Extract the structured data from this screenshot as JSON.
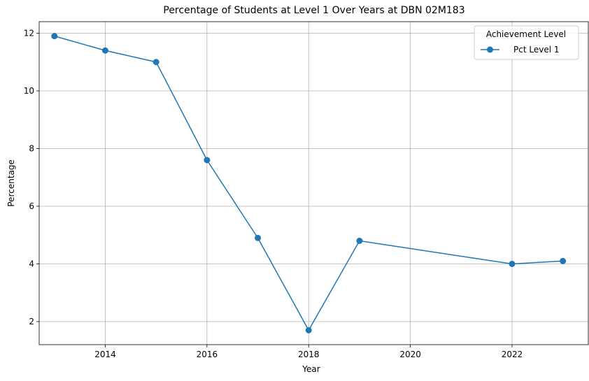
{
  "chart_data": {
    "type": "line",
    "title": "Percentage of Students at Level 1 Over Years at DBN 02M183",
    "xlabel": "Year",
    "ylabel": "Percentage",
    "xlim": [
      2012.7,
      2023.5
    ],
    "ylim": [
      1.2,
      12.4
    ],
    "xticks": [
      2014,
      2016,
      2018,
      2020,
      2022
    ],
    "yticks": [
      2,
      4,
      6,
      8,
      10,
      12
    ],
    "grid": true,
    "legend": {
      "title": "Achievement Level",
      "placement": "top-right"
    },
    "series": [
      {
        "name": "Pct Level 1",
        "color": "#1f77b4",
        "marker": "circle",
        "x": [
          2013,
          2014,
          2015,
          2016,
          2017,
          2018,
          2019,
          2022,
          2023
        ],
        "y": [
          11.9,
          11.4,
          11.0,
          7.6,
          4.9,
          1.7,
          4.8,
          4.0,
          4.1
        ]
      }
    ]
  }
}
